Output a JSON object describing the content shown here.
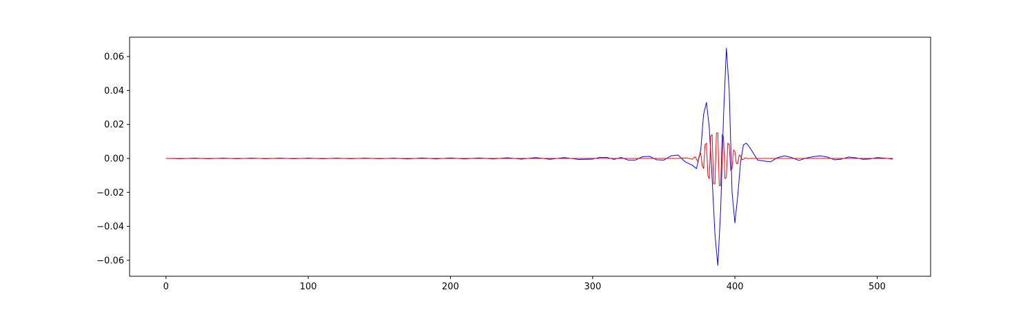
{
  "chart_data": {
    "type": "line",
    "title": "",
    "xlabel": "",
    "ylabel": "",
    "xlim": [
      -25.6,
      537.6
    ],
    "ylim": [
      -0.0694,
      0.0714
    ],
    "xticks": [
      0,
      100,
      200,
      300,
      400,
      500
    ],
    "xtick_labels": [
      "0",
      "100",
      "200",
      "300",
      "400",
      "500"
    ],
    "yticks": [
      -0.06,
      -0.04,
      -0.02,
      0.0,
      0.02,
      0.04,
      0.06
    ],
    "ytick_labels": [
      "−0.06",
      "−0.04",
      "−0.02",
      "0.00",
      "0.02",
      "0.04",
      "0.06"
    ],
    "grid": false,
    "legend": "none",
    "series": [
      {
        "color": "#0000ff",
        "x": [
          0,
          10,
          20,
          30,
          40,
          50,
          60,
          70,
          80,
          90,
          100,
          110,
          120,
          130,
          140,
          150,
          160,
          170,
          180,
          190,
          200,
          210,
          220,
          230,
          240,
          250,
          260,
          270,
          280,
          290,
          300,
          305,
          310,
          315,
          320,
          325,
          330,
          335,
          340,
          345,
          350,
          355,
          360,
          365,
          370,
          373,
          376,
          378,
          380,
          382,
          384,
          386,
          388,
          390,
          392,
          394,
          396,
          398,
          400,
          402,
          404,
          406,
          408,
          410,
          413,
          416,
          420,
          425,
          430,
          435,
          440,
          445,
          450,
          455,
          460,
          465,
          470,
          475,
          480,
          485,
          490,
          495,
          500,
          505,
          511
        ],
        "y": [
          0.0,
          -0.0002,
          0.0002,
          -0.0002,
          0.0002,
          -0.0002,
          0.0002,
          -0.0002,
          0.0002,
          -0.0002,
          0.0002,
          -0.0002,
          0.0002,
          -0.0002,
          0.0002,
          -0.0002,
          0.0002,
          -0.0003,
          0.0003,
          -0.0003,
          0.0003,
          -0.0003,
          0.0003,
          -0.0003,
          0.0004,
          -0.0004,
          0.0005,
          -0.0005,
          0.0005,
          -0.0006,
          -0.0004,
          0.0006,
          0.0006,
          -0.0006,
          0.0006,
          -0.001,
          -0.001,
          0.001,
          0.0012,
          -0.0008,
          -0.001,
          0.0015,
          0.002,
          -0.002,
          -0.004,
          -0.006,
          0.005,
          0.026,
          0.033,
          0.018,
          -0.012,
          -0.045,
          -0.063,
          -0.03,
          0.025,
          0.065,
          0.04,
          -0.02,
          -0.038,
          -0.022,
          -0.002,
          0.008,
          0.009,
          0.007,
          0.003,
          -0.001,
          -0.0015,
          -0.002,
          0.0005,
          0.0015,
          0.0005,
          -0.0012,
          0.0002,
          0.001,
          0.0015,
          0.0008,
          -0.0008,
          -0.0004,
          0.0008,
          0.0004,
          -0.0005,
          -0.0003,
          0.0005,
          0.0002,
          -0.0004
        ]
      },
      {
        "color": "#ff0000",
        "x": [
          0,
          50,
          100,
          150,
          200,
          250,
          300,
          340,
          360,
          366,
          370,
          372,
          374,
          375,
          376,
          377,
          378,
          379,
          380,
          381,
          382,
          383,
          384,
          385,
          386,
          387,
          388,
          389,
          390,
          391,
          392,
          393,
          394,
          395,
          396,
          397,
          398,
          399,
          400,
          401,
          402,
          403,
          404,
          405,
          406,
          407,
          408,
          409,
          410,
          412,
          414,
          418,
          425,
          440,
          460,
          480,
          500,
          511
        ],
        "y": [
          0.0,
          0.0,
          0.0,
          0.0,
          0.0,
          0.0,
          0.0,
          0.0,
          0.0,
          0.0003,
          -0.0005,
          0.001,
          -0.002,
          0.002,
          0.003,
          -0.004,
          -0.006,
          0.008,
          0.009,
          -0.01,
          -0.012,
          0.013,
          0.014,
          -0.015,
          -0.015,
          0.015,
          0.015,
          -0.016,
          -0.016,
          0.014,
          0.013,
          -0.012,
          -0.011,
          0.009,
          0.008,
          -0.007,
          -0.006,
          0.005,
          0.004,
          -0.003,
          -0.003,
          0.002,
          0.0015,
          -0.0008,
          -0.0005,
          0.0003,
          0.0002,
          -0.0001,
          0.0,
          0.0,
          0.0,
          0.0,
          0.0,
          0.0,
          0.0,
          0.0,
          0.0,
          0.0
        ]
      }
    ]
  }
}
